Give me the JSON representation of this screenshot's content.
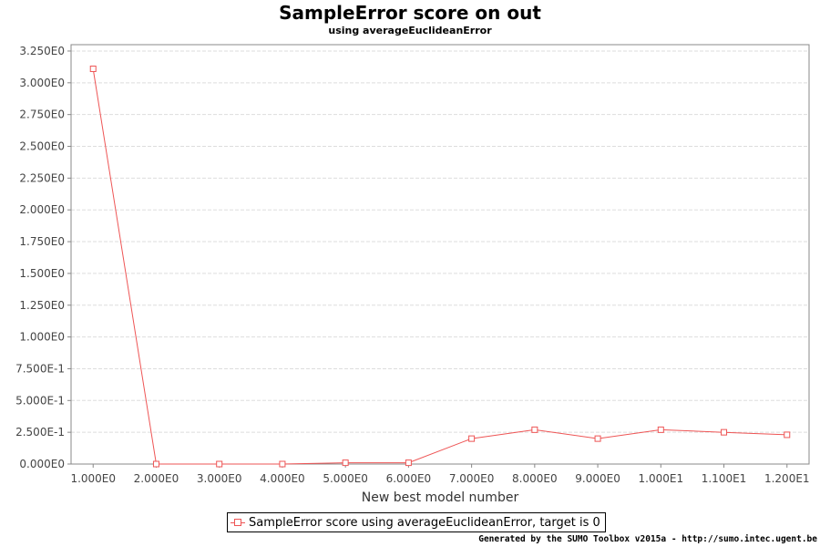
{
  "chart_data": {
    "type": "line",
    "title": "SampleError score on out",
    "subtitle": "using averageEuclideanError",
    "xlabel": "New best model number",
    "ylabel": "",
    "x": [
      1,
      2,
      3,
      4,
      5,
      6,
      7,
      8,
      9,
      10,
      11,
      12
    ],
    "x_tick_labels": [
      "1.000E0",
      "2.000E0",
      "3.000E0",
      "4.000E0",
      "5.000E0",
      "6.000E0",
      "7.000E0",
      "8.000E0",
      "9.000E0",
      "1.000E1",
      "1.100E1",
      "1.200E1"
    ],
    "y_tick_values": [
      0,
      0.25,
      0.5,
      0.75,
      1.0,
      1.25,
      1.5,
      1.75,
      2.0,
      2.25,
      2.5,
      2.75,
      3.0,
      3.25
    ],
    "y_tick_labels": [
      "0.000E0",
      "2.500E-1",
      "5.000E-1",
      "7.500E-1",
      "1.000E0",
      "1.250E0",
      "1.500E0",
      "1.750E0",
      "2.000E0",
      "2.250E0",
      "2.500E0",
      "2.750E0",
      "3.000E0",
      "3.250E0"
    ],
    "xlim": [
      0.65,
      12.35
    ],
    "ylim": [
      0,
      3.3
    ],
    "grid": true,
    "legend_position": "bottom-center",
    "series": [
      {
        "name": "SampleError score using averageEuclideanError, target is 0",
        "color": "#ee5555",
        "marker": "square",
        "values": [
          3.11,
          0.0,
          0.0,
          0.0,
          0.01,
          0.01,
          0.2,
          0.27,
          0.2,
          0.27,
          0.25,
          0.23
        ]
      }
    ]
  },
  "footer": "Generated by the SUMO Toolbox v2015a - http://sumo.intec.ugent.be"
}
